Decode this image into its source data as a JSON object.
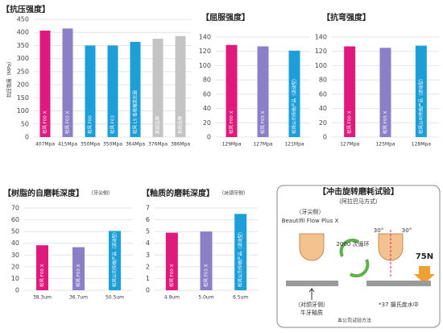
{
  "chart_data": [
    {
      "type": "bar",
      "title": "【抗压强度】",
      "ylabel": "抗压强度（MPa）",
      "categories": [
        "松风 F00 X",
        "松风 F03 X",
        "松风 F00",
        "松风 F03",
        "松风 LS 低收缩类光固",
        "其他品牌",
        "其他品牌"
      ],
      "values": [
        407,
        415,
        350,
        350,
        364,
        376,
        386
      ],
      "value_labels": [
        "407Mpa",
        "415Mpa",
        "350Mpa",
        "350Mpa",
        "364Mpa",
        "376Mpa",
        "386Mpa"
      ],
      "colors": [
        "#e0197d",
        "#8b7fc7",
        "#1c9ed8",
        "#1c9ed8",
        "#1c9ed8",
        "#c4c4c4",
        "#c4c4c4"
      ],
      "ylim": [
        0,
        450
      ],
      "yticks": [
        0,
        50,
        100,
        150,
        200,
        250,
        300,
        350,
        400,
        450
      ],
      "grid": true
    },
    {
      "type": "bar",
      "title": "【屈服强度】",
      "categories": [
        "松风 F00 X",
        "松风 F03 X",
        "松风公司传统产品（流动型）"
      ],
      "values": [
        129,
        127,
        121
      ],
      "value_labels": [
        "129Mpa",
        "127Mpa",
        "121Mpa"
      ],
      "colors": [
        "#e0197d",
        "#8b7fc7",
        "#1c9ed8"
      ],
      "ylim": [
        0,
        140
      ],
      "yticks": [
        0,
        20,
        40,
        60,
        80,
        100,
        120,
        140
      ],
      "grid": true
    },
    {
      "type": "bar",
      "title": "【抗弯强度】",
      "categories": [
        "松风 F00 X",
        "松风 F03 X",
        "松风公司传统产品（流动型）"
      ],
      "values": [
        127,
        125,
        128
      ],
      "value_labels": [
        "127Mpa",
        "125Mpa",
        "128Mpa"
      ],
      "colors": [
        "#e0197d",
        "#8b7fc7",
        "#1c9ed8"
      ],
      "ylim": [
        0,
        140
      ],
      "yticks": [
        0,
        20,
        40,
        60,
        80,
        100,
        120,
        140
      ],
      "grid": true
    },
    {
      "type": "bar",
      "title": "【树脂的自磨耗深度】",
      "subtitle": "（牙尖侧）",
      "categories": [
        "松风 F00 X",
        "松风 F03 X",
        "松风公司传统产品（流动型）"
      ],
      "values": [
        38.3,
        36.7,
        50.5
      ],
      "value_labels": [
        "38.3um",
        "36.7um",
        "50.5um"
      ],
      "colors": [
        "#e0197d",
        "#8b7fc7",
        "#1c9ed8"
      ],
      "ylim": [
        0,
        70
      ],
      "yticks": [
        0,
        10,
        20,
        30,
        40,
        50,
        60,
        70
      ],
      "grid": true
    },
    {
      "type": "bar",
      "title": "【釉质的磨耗深度】",
      "subtitle": "（对颌牙侧）",
      "categories": [
        "松风 F00 X",
        "松风 F03 X",
        "松风公司传统产品（流动型）"
      ],
      "values": [
        4.9,
        5.0,
        6.5
      ],
      "value_labels": [
        "4.9um",
        "5.0um",
        "6.5um"
      ],
      "colors": [
        "#e0197d",
        "#8b7fc7",
        "#1c9ed8"
      ],
      "ylim": [
        0,
        7
      ],
      "yticks": [
        0,
        1,
        2,
        3,
        4,
        5,
        6,
        7
      ],
      "grid": true
    }
  ],
  "diagram": {
    "title": "【冲击旋转磨耗试验】",
    "subtitle": "（阿拉巴马方式）",
    "upper_side": "（牙尖侧）",
    "upper_material": "Beautifil Flow Plus X",
    "cycles": "2000 次循环",
    "angle_left": "30°",
    "angle_right": "30°",
    "force": "75N",
    "lower_side": "（对颌牙侧）",
    "lower_material": "牛牙釉质",
    "water": "*37 摄氏度水中",
    "note": "本公司试验方法"
  }
}
